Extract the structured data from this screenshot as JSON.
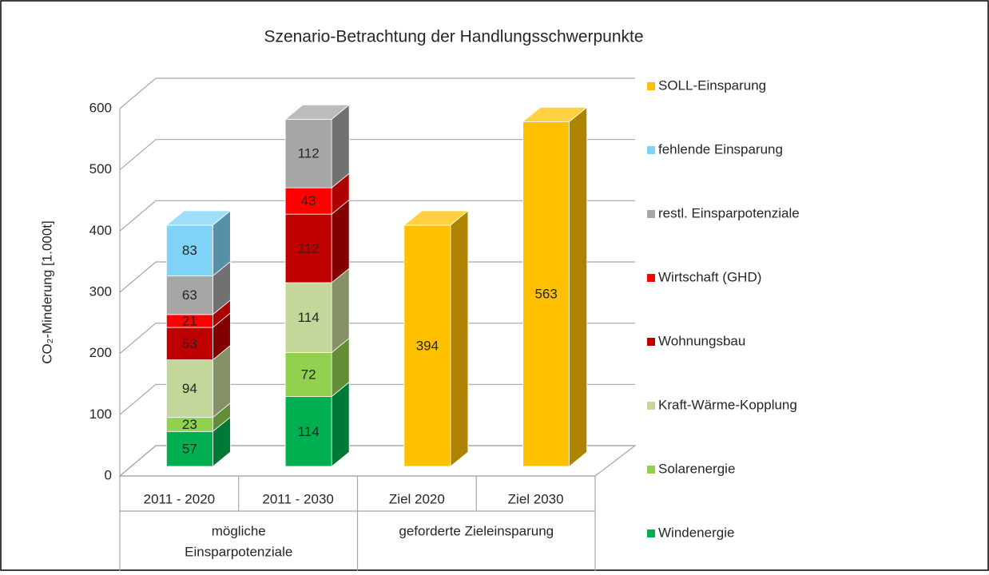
{
  "chart_data": {
    "type": "bar3d-stacked",
    "title": "Szenario-Betrachtung der Handlungsschwerpunkte",
    "y_label": "CO₂-Minderung [1.000t]",
    "categories": [
      "2011 - 2020",
      "2011 - 2030",
      "Ziel 2020",
      "Ziel 2030"
    ],
    "groups": [
      [
        "mögliche",
        "Einsparpotenziale"
      ],
      [
        "geforderte Zieleinsparung"
      ]
    ],
    "series": [
      {
        "name": "Windenergie",
        "color": "#00b050",
        "values": [
          57,
          114,
          null,
          null
        ]
      },
      {
        "name": "Solarenergie",
        "color": "#92d050",
        "values": [
          23,
          72,
          null,
          null
        ]
      },
      {
        "name": "Kraft-Wärme-Kopplung",
        "color": "#c4d79b",
        "values": [
          94,
          114,
          null,
          null
        ]
      },
      {
        "name": "Wohnungsbau",
        "color": "#c00000",
        "values": [
          53,
          112,
          null,
          null
        ]
      },
      {
        "name": "Wirtschaft (GHD)",
        "color": "#ff0000",
        "values": [
          21,
          43,
          null,
          null
        ]
      },
      {
        "name": "restl. Einsparpotenziale",
        "color": "#a6a6a6",
        "values": [
          63,
          112,
          null,
          null
        ]
      },
      {
        "name": "fehlende Einsparung",
        "color": "#7fd3f7",
        "values": [
          83,
          null,
          null,
          null
        ]
      },
      {
        "name": "SOLL-Einsparung",
        "color": "#ffc000",
        "values": [
          null,
          null,
          394,
          563
        ]
      }
    ],
    "ylim": [
      0,
      600
    ],
    "yticks": [
      0,
      100,
      200,
      300,
      400,
      500,
      600
    ],
    "grid": true,
    "legend": "right"
  }
}
